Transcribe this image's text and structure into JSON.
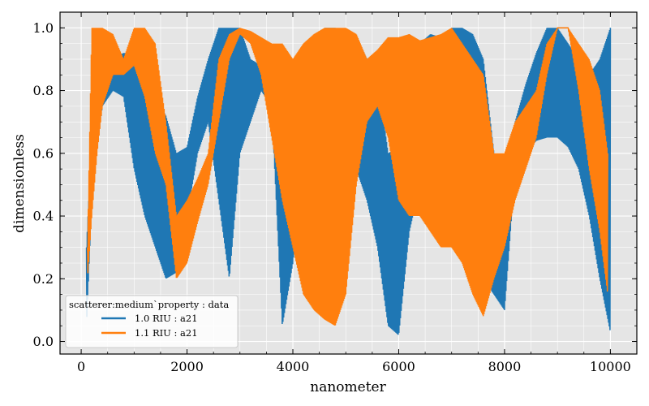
{
  "chart_data": {
    "type": "line",
    "title": "",
    "xlabel": "nanometer",
    "ylabel": "dimensionless",
    "xlim": [
      -400,
      10500
    ],
    "ylim": [
      -0.04,
      1.05
    ],
    "xticks": [
      0,
      2000,
      4000,
      6000,
      8000,
      10000
    ],
    "xtick_labels": [
      "0",
      "2000",
      "4000",
      "6000",
      "8000",
      "10000"
    ],
    "yticks": [
      0.0,
      0.2,
      0.4,
      0.6,
      0.8,
      1.0
    ],
    "ytick_labels": [
      "0.0",
      "0.2",
      "0.4",
      "0.6",
      "0.8",
      "1.0"
    ],
    "grid": true,
    "background": "#e5e5e5",
    "legend": {
      "placement": "lower-left",
      "title": "scatterer:medium`property : data"
    },
    "series": [
      {
        "name": "1.0 RIU : a21",
        "color": "#1f77b4",
        "x": [
          100,
          200,
          300,
          400,
          600,
          800,
          1000,
          1200,
          1400,
          1600,
          1800,
          2000,
          2200,
          2400,
          2600,
          2800,
          3000,
          3200,
          3400,
          3600,
          3800,
          4000,
          4200,
          4400,
          4600,
          4800,
          5000,
          5200,
          5400,
          5600,
          5800,
          6000,
          6200,
          6400,
          6600,
          6800,
          7000,
          7200,
          7400,
          7600,
          7800,
          8000,
          8200,
          8400,
          8600,
          8800,
          9000,
          9200,
          9400,
          9600,
          9800,
          10000
        ],
        "lower": [
          0.05,
          0.45,
          0.62,
          0.75,
          0.8,
          0.78,
          0.55,
          0.4,
          0.3,
          0.2,
          0.22,
          0.4,
          0.6,
          0.7,
          0.45,
          0.2,
          0.6,
          0.7,
          0.8,
          0.75,
          0.05,
          0.25,
          0.58,
          0.65,
          0.75,
          0.78,
          0.8,
          0.55,
          0.45,
          0.3,
          0.05,
          0.02,
          0.35,
          0.5,
          0.68,
          0.75,
          0.6,
          0.45,
          0.3,
          0.2,
          0.15,
          0.1,
          0.55,
          0.6,
          0.64,
          0.65,
          0.65,
          0.62,
          0.55,
          0.4,
          0.2,
          0.03
        ],
        "upper": [
          0.3,
          0.65,
          0.78,
          0.85,
          0.9,
          0.92,
          0.92,
          0.88,
          0.78,
          0.72,
          0.6,
          0.62,
          0.78,
          0.9,
          1.0,
          1.0,
          1.0,
          0.9,
          0.88,
          0.85,
          0.65,
          0.82,
          0.88,
          0.95,
          1.0,
          1.0,
          0.98,
          0.97,
          0.9,
          0.85,
          0.6,
          0.62,
          0.85,
          0.95,
          0.98,
          0.97,
          1.0,
          1.0,
          0.98,
          0.9,
          0.6,
          0.4,
          0.7,
          0.82,
          0.92,
          1.0,
          1.0,
          0.95,
          0.9,
          0.85,
          0.9,
          1.0
        ]
      },
      {
        "name": "1.1 RIU : a21",
        "color": "#ff7f0e",
        "x": [
          120,
          200,
          300,
          400,
          600,
          800,
          1000,
          1200,
          1400,
          1600,
          1800,
          2000,
          2200,
          2400,
          2600,
          2800,
          3000,
          3200,
          3400,
          3600,
          3800,
          4000,
          4200,
          4400,
          4600,
          4800,
          5000,
          5200,
          5400,
          5600,
          5800,
          6000,
          6200,
          6400,
          6600,
          6800,
          7000,
          7200,
          7400,
          7600,
          7800,
          8000,
          8200,
          8400,
          8600,
          8800,
          9000,
          9200,
          9400,
          9600,
          9800,
          9950
        ],
        "lower": [
          0.2,
          0.4,
          0.6,
          0.75,
          0.85,
          0.85,
          0.88,
          0.78,
          0.6,
          0.5,
          0.2,
          0.25,
          0.38,
          0.5,
          0.7,
          0.9,
          0.98,
          0.95,
          0.85,
          0.65,
          0.45,
          0.3,
          0.15,
          0.1,
          0.07,
          0.05,
          0.15,
          0.5,
          0.7,
          0.75,
          0.65,
          0.45,
          0.4,
          0.4,
          0.35,
          0.3,
          0.3,
          0.25,
          0.15,
          0.08,
          0.2,
          0.3,
          0.45,
          0.55,
          0.65,
          0.85,
          1.0,
          1.0,
          0.8,
          0.55,
          0.35,
          0.15
        ],
        "upper": [
          0.3,
          1.0,
          1.0,
          1.0,
          0.98,
          0.9,
          1.0,
          1.0,
          0.95,
          0.7,
          0.4,
          0.45,
          0.52,
          0.6,
          0.9,
          0.98,
          1.0,
          0.99,
          0.97,
          0.95,
          0.95,
          0.9,
          0.95,
          0.98,
          1.0,
          1.0,
          1.0,
          0.98,
          0.9,
          0.93,
          0.97,
          0.97,
          0.98,
          0.96,
          0.97,
          0.98,
          1.0,
          0.95,
          0.9,
          0.85,
          0.6,
          0.6,
          0.7,
          0.75,
          0.8,
          0.95,
          1.0,
          1.0,
          0.95,
          0.9,
          0.8,
          0.6
        ]
      }
    ]
  }
}
